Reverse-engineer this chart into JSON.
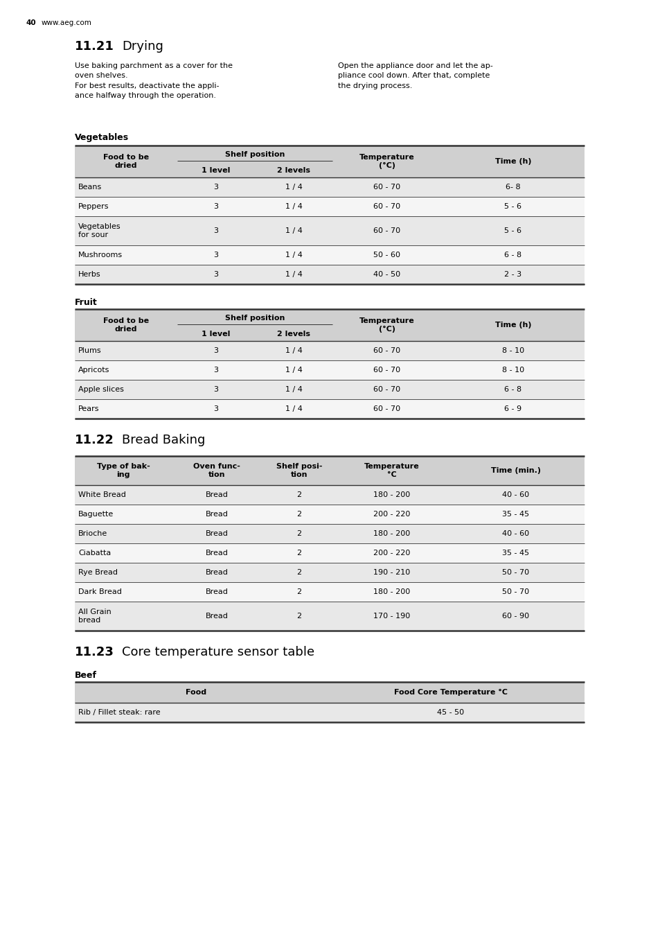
{
  "page_number": "40",
  "website": "www.aeg.com",
  "section_21_text_left": "Use baking parchment as a cover for the\noven shelves.\nFor best results, deactivate the appli-\nance halfway through the operation.",
  "section_21_text_right": "Open the appliance door and let the ap-\npliance cool down. After that, complete\nthe drying process.",
  "veg_header": "Vegetables",
  "veg_rows": [
    [
      "Beans",
      "3",
      "1 / 4",
      "60 - 70",
      "6- 8"
    ],
    [
      "Peppers",
      "3",
      "1 / 4",
      "60 - 70",
      "5 - 6"
    ],
    [
      "Vegetables\nfor sour",
      "3",
      "1 / 4",
      "60 - 70",
      "5 - 6"
    ],
    [
      "Mushrooms",
      "3",
      "1 / 4",
      "50 - 60",
      "6 - 8"
    ],
    [
      "Herbs",
      "3",
      "1 / 4",
      "40 - 50",
      "2 - 3"
    ]
  ],
  "fruit_header": "Fruit",
  "fruit_rows": [
    [
      "Plums",
      "3",
      "1 / 4",
      "60 - 70",
      "8 - 10"
    ],
    [
      "Apricots",
      "3",
      "1 / 4",
      "60 - 70",
      "8 - 10"
    ],
    [
      "Apple slices",
      "3",
      "1 / 4",
      "60 - 70",
      "6 - 8"
    ],
    [
      "Pears",
      "3",
      "1 / 4",
      "60 - 70",
      "6 - 9"
    ]
  ],
  "bread_col_headers": [
    "Type of bak-\ning",
    "Oven func-\ntion",
    "Shelf posi-\ntion",
    "Temperature\n°C",
    "Time (min.)"
  ],
  "bread_rows": [
    [
      "White Bread",
      "Bread",
      "2",
      "180 - 200",
      "40 - 60"
    ],
    [
      "Baguette",
      "Bread",
      "2",
      "200 - 220",
      "35 - 45"
    ],
    [
      "Brioche",
      "Bread",
      "2",
      "180 - 200",
      "40 - 60"
    ],
    [
      "Ciabatta",
      "Bread",
      "2",
      "200 - 220",
      "35 - 45"
    ],
    [
      "Rye Bread",
      "Bread",
      "2",
      "190 - 210",
      "50 - 70"
    ],
    [
      "Dark Bread",
      "Bread",
      "2",
      "180 - 200",
      "50 - 70"
    ],
    [
      "All Grain\nbread",
      "Bread",
      "2",
      "170 - 190",
      "60 - 90"
    ]
  ],
  "beef_header": "Beef",
  "beef_col_headers": [
    "Food",
    "Food Core Temperature °C"
  ],
  "beef_rows": [
    [
      "Rib / Fillet steak: rare",
      "45 - 50"
    ]
  ],
  "bg_color": "#ffffff",
  "table_header_bg": "#d0d0d0",
  "table_row_bg_even": "#e8e8e8",
  "table_row_bg_odd": "#f5f5f5",
  "hdr_fs": 8.0,
  "body_fs": 8.0,
  "title_fs": 13.0,
  "sub_hdr_fs": 9.0,
  "page_fs": 7.5
}
